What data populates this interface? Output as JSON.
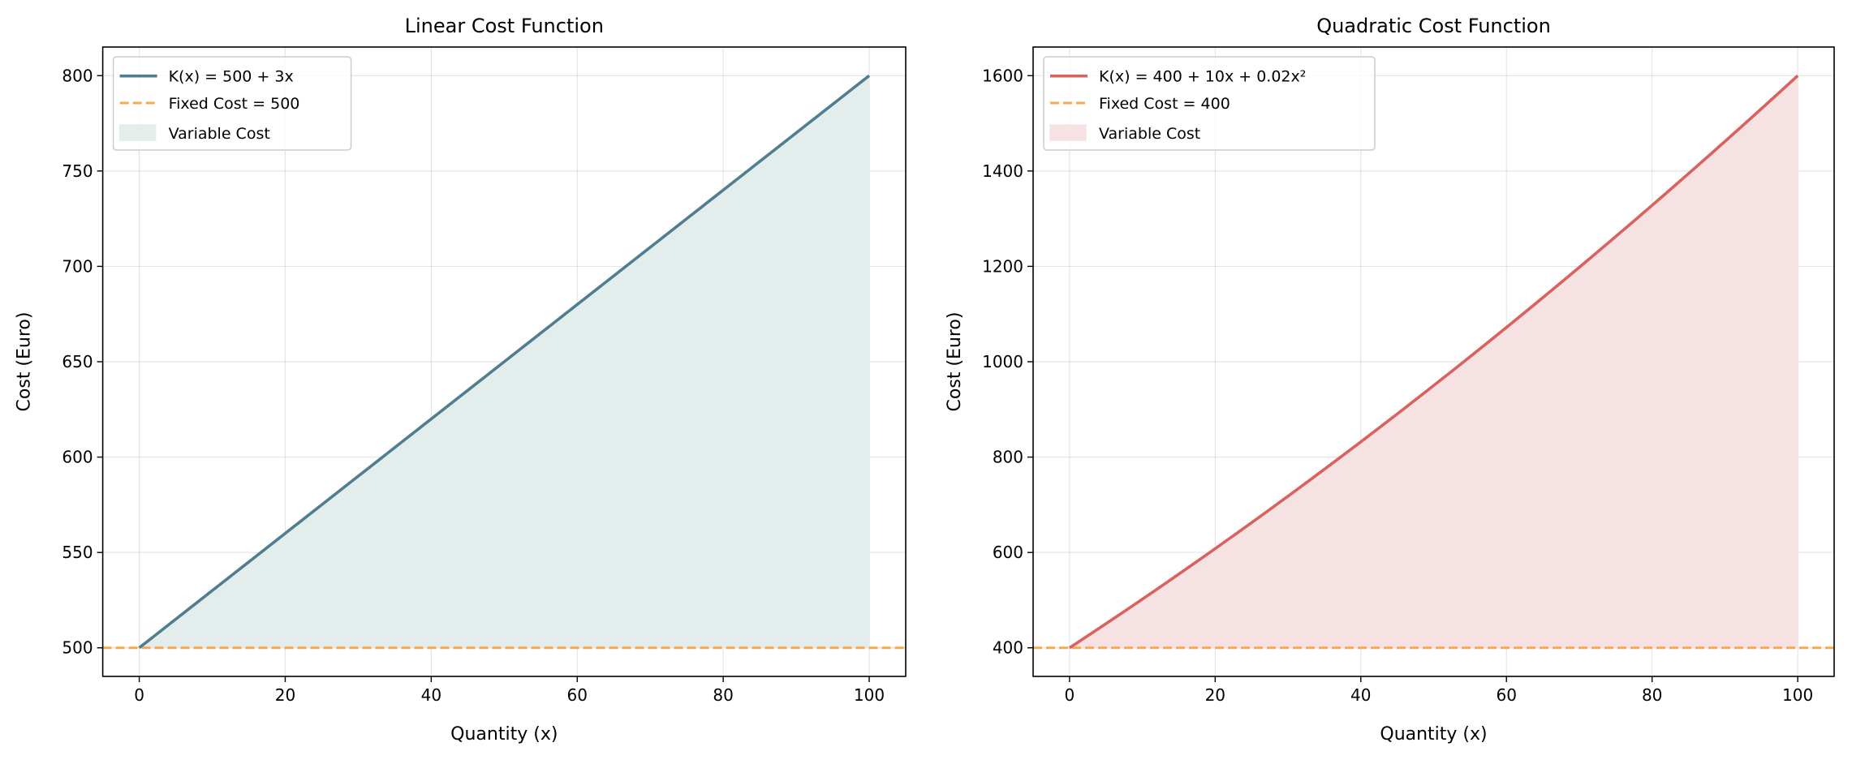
{
  "chart_data": [
    {
      "type": "line",
      "title": "Linear Cost Function",
      "xlabel": "Quantity (x)",
      "ylabel": "Cost (Euro)",
      "xlim": [
        -5,
        105
      ],
      "ylim": [
        485,
        815
      ],
      "xticks": [
        0,
        20,
        40,
        60,
        80,
        100
      ],
      "yticks": [
        500,
        550,
        600,
        650,
        700,
        750,
        800
      ],
      "grid": true,
      "legend_position": "top-left",
      "function": {
        "fixed": 500,
        "linear": 3,
        "quadratic": 0
      },
      "x": [
        0,
        100
      ],
      "series": [
        {
          "name": "K(x) = 500 + 3x",
          "kind": "line",
          "color": "#507e90"
        },
        {
          "name": "Fixed Cost = 500",
          "kind": "hline",
          "value": 500,
          "color": "#f8a84e"
        },
        {
          "name": "Variable Cost",
          "kind": "fill",
          "color": "#e3eeec"
        }
      ]
    },
    {
      "type": "line",
      "title": "Quadratic Cost Function",
      "xlabel": "Quantity (x)",
      "ylabel": "Cost (Euro)",
      "xlim": [
        -5,
        105
      ],
      "ylim": [
        340,
        1660
      ],
      "xticks": [
        0,
        20,
        40,
        60,
        80,
        100
      ],
      "yticks": [
        400,
        600,
        800,
        1000,
        1200,
        1400,
        1600
      ],
      "grid": true,
      "legend_position": "top-left",
      "function": {
        "fixed": 400,
        "linear": 10,
        "quadratic": 0.02
      },
      "x": [
        0,
        100
      ],
      "series": [
        {
          "name": "K(x) = 400 + 10x + 0.02x²",
          "kind": "line",
          "color": "#d9625f"
        },
        {
          "name": "Fixed Cost = 400",
          "kind": "hline",
          "value": 400,
          "color": "#f8a84e"
        },
        {
          "name": "Variable Cost",
          "kind": "fill",
          "color": "#f7e2e3"
        }
      ]
    }
  ]
}
